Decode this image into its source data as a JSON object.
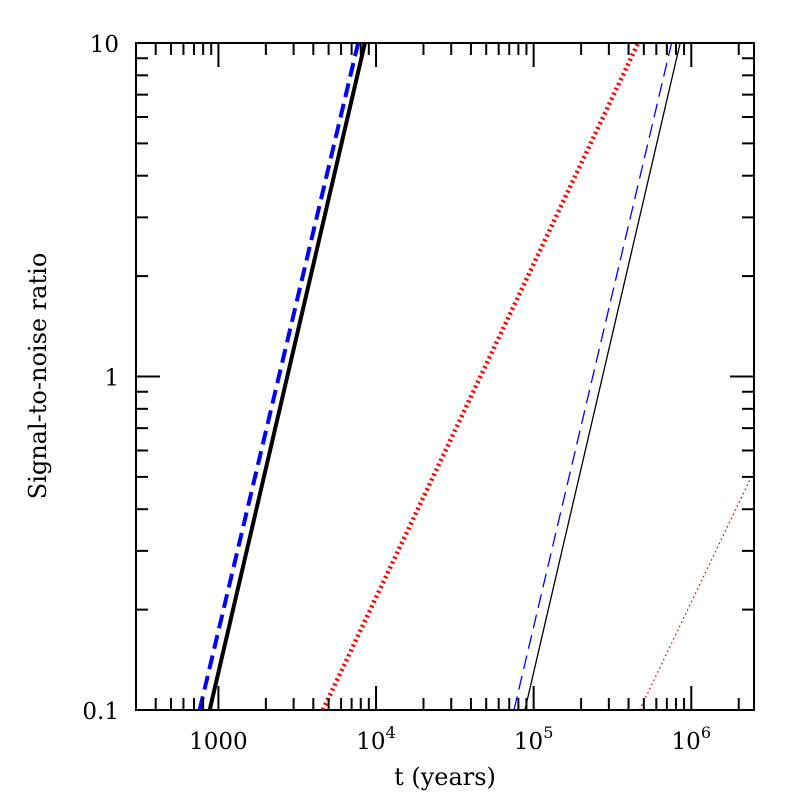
{
  "chart_data": {
    "type": "line",
    "xlabel": "t (years)",
    "ylabel": "Signal-to-noise ratio",
    "xscale": "log",
    "yscale": "log",
    "xlim": [
      300,
      2500000
    ],
    "ylim": [
      0.1,
      10
    ],
    "grid": false,
    "legend": "none",
    "x_tick_labels": [
      {
        "value": 1000,
        "label": "1000"
      },
      {
        "value": 10000,
        "label": "10",
        "exp": "4"
      },
      {
        "value": 100000,
        "label": "10",
        "exp": "5"
      },
      {
        "value": 1000000,
        "label": "10",
        "exp": "6"
      }
    ],
    "y_tick_labels": [
      {
        "value": 0.1,
        "label": "0.1"
      },
      {
        "value": 1,
        "label": "1"
      },
      {
        "value": 10,
        "label": "10"
      }
    ],
    "series": [
      {
        "color": "#0000ff",
        "style": "dashed",
        "weight": "thick",
        "x": [
          760,
          7700
        ],
        "y": [
          0.1,
          10
        ]
      },
      {
        "color": "#000000",
        "style": "solid",
        "weight": "thick",
        "x": [
          880,
          8500
        ],
        "y": [
          0.1,
          10
        ]
      },
      {
        "color": "#ff0000",
        "style": "dotted",
        "weight": "thick",
        "x": [
          4600,
          460000
        ],
        "y": [
          0.1,
          10
        ]
      },
      {
        "color": "#0000ff",
        "style": "dashed",
        "weight": "thin",
        "x": [
          75000,
          750000
        ],
        "y": [
          0.1,
          10
        ]
      },
      {
        "color": "#000000",
        "style": "solid",
        "weight": "thin",
        "x": [
          88000,
          850000
        ],
        "y": [
          0.1,
          10
        ]
      },
      {
        "color": "#ff0000",
        "style": "dotted",
        "weight": "thin",
        "x": [
          470000,
          2500000
        ],
        "y": [
          0.1,
          0.52
        ]
      }
    ]
  }
}
